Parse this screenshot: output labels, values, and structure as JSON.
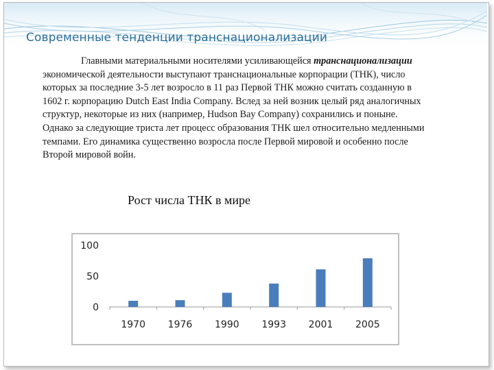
{
  "slide": {
    "title": "Современные тенденции транснационализации",
    "body_intro": "Главными материальными носителями усиливающейся",
    "body_emph": "транснационализации",
    "body_rest": " экономической деятельности выступают транснациональные корпорации (ТНК), число которых за последние 3-5 лет возросло в 11 раз Первой ТНК можно считать созданную в 1602 г. корпорацию Dutch East India Company. Вслед за ней возник целый ряд аналогичных структур, некоторые из них (например, Hudson Bay Company) сохранились и поныне. Однако за следующие триста лет процесс образования ТНК шел относительно медленными темпами. Его динамика существенно возросла после Первой мировой и особенно после Второй мировой войн.",
    "chart_heading": "Рост  числа ТНК в мире"
  },
  "colors": {
    "title": "#2c6f9a",
    "bar": "#4a7ebb",
    "frame": "#bfbfbf"
  },
  "chart_data": {
    "type": "bar",
    "categories": [
      "1970",
      "1976",
      "1990",
      "1993",
      "2001",
      "2005"
    ],
    "values": [
      10,
      11,
      23,
      38,
      61,
      79
    ],
    "yticks": [
      "0",
      "50",
      "100"
    ],
    "ylim": [
      0,
      100
    ],
    "grid": false,
    "legend": "none",
    "title": "",
    "xlabel": "",
    "ylabel": ""
  }
}
